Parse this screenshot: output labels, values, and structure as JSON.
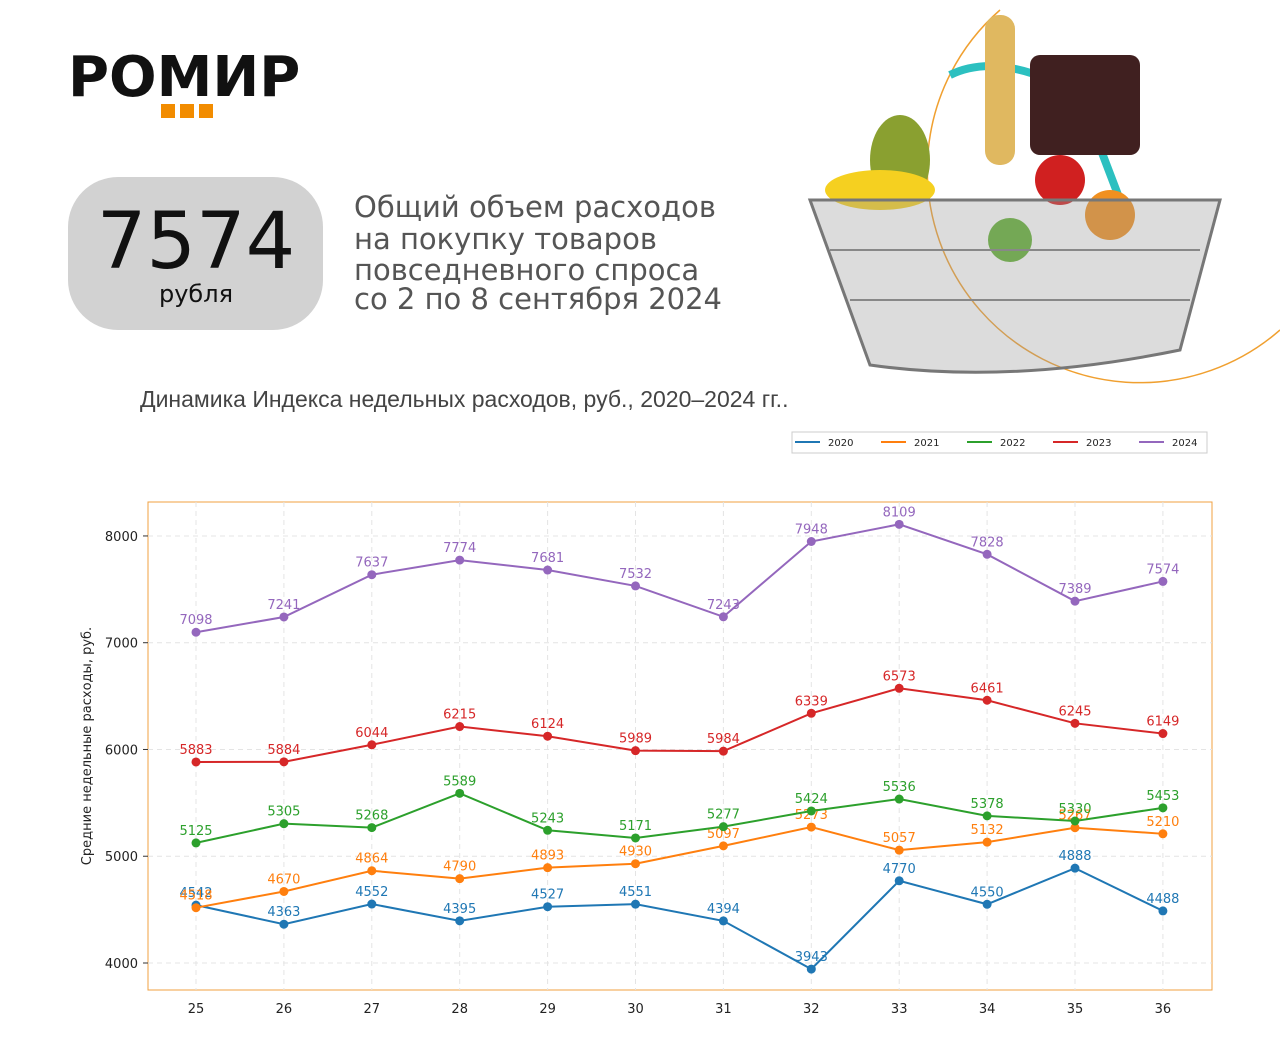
{
  "header": {
    "logo": "РОМИР",
    "big_number": "7574",
    "big_number_unit": "рубля",
    "description": [
      "Общий объем расходов",
      "на покупку товаров",
      "повседневного спроса",
      "со 2 по 8 сентября 2024"
    ]
  },
  "chart_data": {
    "type": "line",
    "title": "Динамика Индекса недельных расходов, руб., 2020–2024 гг..",
    "y_label": "Средние недельные расходы, руб.",
    "categories": [
      "25",
      "26",
      "27",
      "28",
      "29",
      "30",
      "31",
      "32",
      "33",
      "34",
      "35",
      "36"
    ],
    "series": [
      {
        "name": "2020",
        "color": "#1f77b4",
        "values": [
          4542,
          4363,
          4552,
          4395,
          4527,
          4551,
          4394,
          3943,
          4770,
          4550,
          4888,
          4488
        ]
      },
      {
        "name": "2021",
        "color": "#ff7f0e",
        "values": [
          4518,
          4670,
          4864,
          4790,
          4893,
          4930,
          5097,
          5273,
          5057,
          5132,
          5267,
          5210
        ]
      },
      {
        "name": "2022",
        "color": "#2ca02c",
        "values": [
          5125,
          5305,
          5268,
          5589,
          5243,
          5171,
          5277,
          5424,
          5536,
          5378,
          5330,
          5453
        ]
      },
      {
        "name": "2023",
        "color": "#d62728",
        "values": [
          5883,
          5884,
          6044,
          6215,
          6124,
          5989,
          5984,
          6339,
          6573,
          6461,
          6245,
          6149
        ]
      },
      {
        "name": "2024",
        "color": "#9467bd",
        "values": [
          7098,
          7241,
          7637,
          7774,
          7681,
          7532,
          7243,
          7948,
          8109,
          7828,
          7389,
          7574
        ]
      }
    ],
    "ylim": [
      3747,
      8318
    ],
    "yticks": [
      4000,
      5000,
      6000,
      7000,
      8000
    ],
    "grid": true,
    "frame_color": "#f0a040"
  }
}
